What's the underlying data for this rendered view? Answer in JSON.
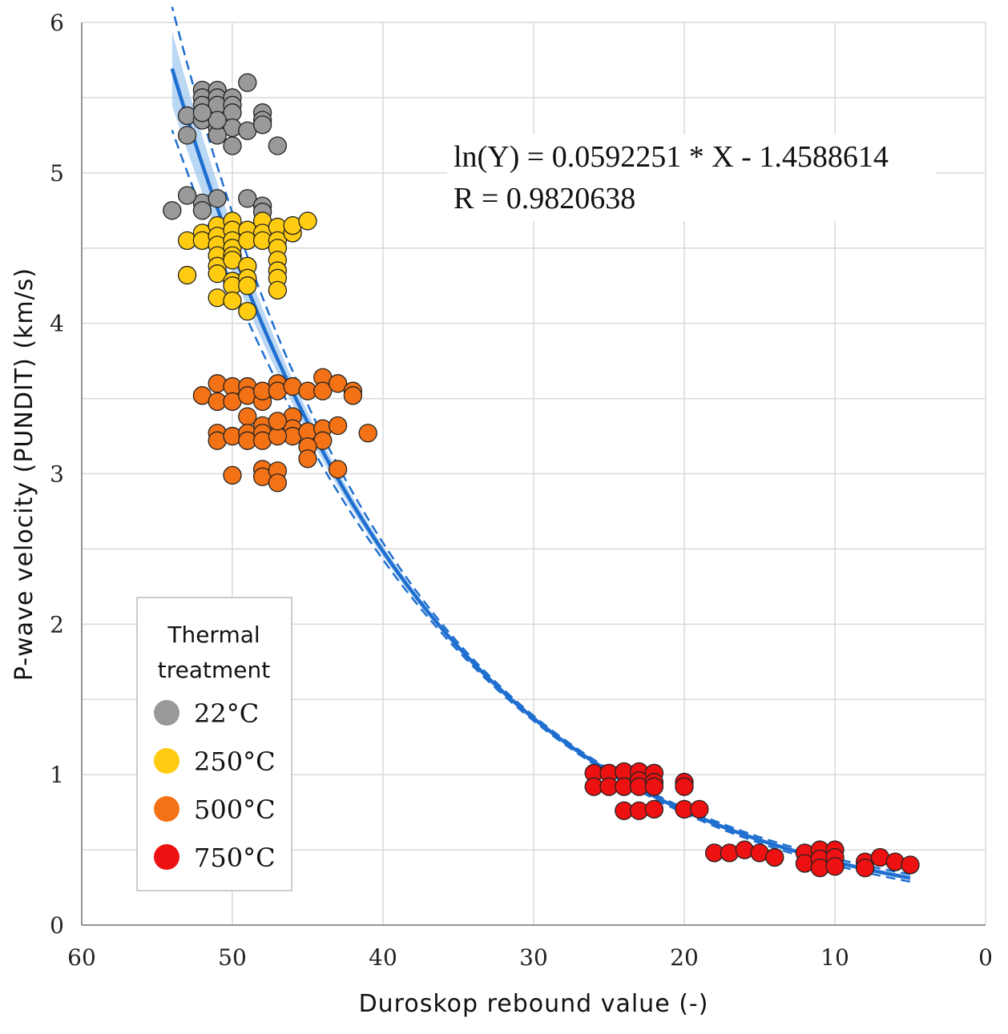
{
  "chart_data": {
    "type": "scatter",
    "title": "",
    "xlabel": "Duroskop rebound value (-)",
    "ylabel": "P-wave velocity (PUNDIT) (km/s)",
    "xlim": [
      60,
      0
    ],
    "ylim": [
      0,
      6
    ],
    "x_reversed": true,
    "x_ticks": [
      "60",
      "50",
      "40",
      "30",
      "20",
      "10",
      "0"
    ],
    "y_ticks": [
      "0",
      "1",
      "2",
      "3",
      "4",
      "5",
      "6"
    ],
    "grid": true,
    "equation": "ln(Y) = 0.0592251 * X - 1.4588614",
    "r_value": "R = 0.9820638",
    "fit": {
      "type": "exponential",
      "a": 0.0592251,
      "b": -1.4588614,
      "x_range": [
        5,
        54
      ],
      "color": "#1f6fd0",
      "band_color": "#9cc6f0"
    },
    "legend": {
      "title_line1": "Thermal",
      "title_line2": "treatment",
      "position": "bottom-left"
    },
    "series": [
      {
        "name": "22°C",
        "color": "#999999",
        "points": [
          [
            52,
            5.55
          ],
          [
            52,
            5.5
          ],
          [
            52,
            5.45
          ],
          [
            51,
            5.55
          ],
          [
            51,
            5.5
          ],
          [
            51,
            5.45
          ],
          [
            50,
            5.5
          ],
          [
            50,
            5.45
          ],
          [
            50,
            5.4
          ],
          [
            49,
            5.6
          ],
          [
            48,
            5.4
          ],
          [
            48,
            5.35
          ],
          [
            53,
            5.38
          ],
          [
            52,
            5.35
          ],
          [
            51,
            5.3
          ],
          [
            50,
            5.3
          ],
          [
            49,
            5.28
          ],
          [
            48,
            5.32
          ],
          [
            47,
            5.18
          ],
          [
            50,
            5.18
          ],
          [
            51,
            5.25
          ],
          [
            53,
            5.25
          ],
          [
            51,
            5.35
          ],
          [
            52,
            5.4
          ],
          [
            52,
            4.8
          ],
          [
            53,
            4.85
          ],
          [
            51,
            4.83
          ],
          [
            49,
            4.83
          ],
          [
            48,
            4.78
          ],
          [
            54,
            4.75
          ],
          [
            52,
            4.75
          ],
          [
            48,
            4.74
          ]
        ]
      },
      {
        "name": "250°C",
        "color": "#ffcc11",
        "points": [
          [
            53,
            4.55
          ],
          [
            52,
            4.6
          ],
          [
            52,
            4.55
          ],
          [
            51,
            4.65
          ],
          [
            51,
            4.58
          ],
          [
            51,
            4.52
          ],
          [
            51,
            4.45
          ],
          [
            51,
            4.38
          ],
          [
            51,
            4.33
          ],
          [
            50,
            4.68
          ],
          [
            50,
            4.62
          ],
          [
            50,
            4.55
          ],
          [
            50,
            4.5
          ],
          [
            50,
            4.45
          ],
          [
            50,
            4.42
          ],
          [
            49,
            4.62
          ],
          [
            49,
            4.55
          ],
          [
            48,
            4.68
          ],
          [
            48,
            4.6
          ],
          [
            48,
            4.55
          ],
          [
            47,
            4.64
          ],
          [
            47,
            4.55
          ],
          [
            47,
            4.5
          ],
          [
            47,
            4.42
          ],
          [
            47,
            4.35
          ],
          [
            47,
            4.3
          ],
          [
            47,
            4.22
          ],
          [
            46,
            4.6
          ],
          [
            46,
            4.65
          ],
          [
            45,
            4.68
          ],
          [
            50,
            4.28
          ],
          [
            50,
            4.25
          ],
          [
            49,
            4.38
          ],
          [
            49,
            4.3
          ],
          [
            49,
            4.25
          ],
          [
            51,
            4.17
          ],
          [
            50,
            4.15
          ],
          [
            49,
            4.08
          ],
          [
            53,
            4.32
          ]
        ]
      },
      {
        "name": "500°C",
        "color": "#f47216",
        "points": [
          [
            52,
            3.52
          ],
          [
            51,
            3.6
          ],
          [
            51,
            3.48
          ],
          [
            50,
            3.58
          ],
          [
            50,
            3.48
          ],
          [
            49,
            3.58
          ],
          [
            49,
            3.52
          ],
          [
            48,
            3.48
          ],
          [
            48,
            3.55
          ],
          [
            47,
            3.6
          ],
          [
            47,
            3.55
          ],
          [
            46,
            3.58
          ],
          [
            45,
            3.55
          ],
          [
            44,
            3.64
          ],
          [
            44,
            3.55
          ],
          [
            43,
            3.6
          ],
          [
            42,
            3.55
          ],
          [
            42,
            3.52
          ],
          [
            46,
            3.38
          ],
          [
            46,
            3.3
          ],
          [
            46,
            3.25
          ],
          [
            45,
            3.28
          ],
          [
            44,
            3.3
          ],
          [
            44,
            3.22
          ],
          [
            43,
            3.32
          ],
          [
            51,
            3.27
          ],
          [
            51,
            3.22
          ],
          [
            50,
            3.25
          ],
          [
            49,
            3.38
          ],
          [
            49,
            3.27
          ],
          [
            49,
            3.22
          ],
          [
            48,
            3.32
          ],
          [
            48,
            3.27
          ],
          [
            48,
            3.22
          ],
          [
            47,
            3.25
          ],
          [
            47,
            3.35
          ],
          [
            45,
            3.18
          ],
          [
            45,
            3.1
          ],
          [
            41,
            3.27
          ],
          [
            50,
            2.99
          ],
          [
            48,
            3.03
          ],
          [
            48,
            2.98
          ],
          [
            47,
            3.02
          ],
          [
            47,
            2.94
          ],
          [
            43,
            3.03
          ]
        ]
      },
      {
        "name": "750°C",
        "color": "#ee1111",
        "points": [
          [
            26,
            1.01
          ],
          [
            26,
            0.92
          ],
          [
            25,
            1.01
          ],
          [
            25,
            0.92
          ],
          [
            24,
            1.02
          ],
          [
            24,
            0.92
          ],
          [
            23,
            1.02
          ],
          [
            23,
            0.96
          ],
          [
            23,
            0.92
          ],
          [
            22,
            1.01
          ],
          [
            22,
            0.95
          ],
          [
            22,
            0.92
          ],
          [
            20,
            0.95
          ],
          [
            20,
            0.92
          ],
          [
            24,
            0.76
          ],
          [
            23,
            0.76
          ],
          [
            22,
            0.77
          ],
          [
            20,
            0.77
          ],
          [
            19,
            0.77
          ],
          [
            18,
            0.48
          ],
          [
            17,
            0.48
          ],
          [
            16,
            0.5
          ],
          [
            15,
            0.48
          ],
          [
            14,
            0.45
          ],
          [
            12,
            0.48
          ],
          [
            12,
            0.41
          ],
          [
            11,
            0.5
          ],
          [
            11,
            0.44
          ],
          [
            11,
            0.38
          ],
          [
            10,
            0.5
          ],
          [
            10,
            0.45
          ],
          [
            10,
            0.39
          ],
          [
            8,
            0.42
          ],
          [
            8,
            0.38
          ],
          [
            7,
            0.45
          ],
          [
            6,
            0.42
          ],
          [
            5,
            0.4
          ]
        ]
      }
    ]
  }
}
